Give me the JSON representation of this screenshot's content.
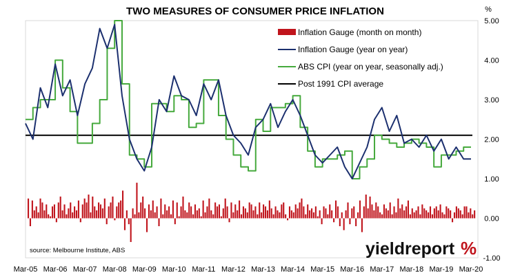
{
  "chart_data": {
    "type": "line",
    "title": "TWO MEASURES OF CONSUMER PRICE INFLATION",
    "y_unit": "%",
    "xlabel": "",
    "ylabel": "",
    "ylim": [
      -1.0,
      5.0
    ],
    "y_ticks": [
      "5.00",
      "4.00",
      "3.00",
      "2.00",
      "1.00",
      "0.00",
      "-1.00"
    ],
    "x_ticks": [
      "Mar-05",
      "Mar-06",
      "Mar-07",
      "Mar-08",
      "Mar-09",
      "Mar-10",
      "Mar-11",
      "Mar-12",
      "Mar-13",
      "Mar-14",
      "Mar-15",
      "Mar-16",
      "Mar-17",
      "Mar-18",
      "Mar-19",
      "Mar-20"
    ],
    "grid": false,
    "legend_position": "top-right",
    "source": "source: Melbourne Institute, ABS",
    "brand": "yieldreport",
    "brand_symbol": "%",
    "series": [
      {
        "name": "Inflation Gauge (month on month)",
        "type": "bar",
        "color": "#c0141c",
        "values": [
          0.5,
          -0.2,
          0.45,
          0.2,
          0.3,
          0.15,
          0.5,
          0.4,
          0.2,
          0.35,
          0.1,
          0.05,
          0.3,
          0.35,
          -0.1,
          0.4,
          0.55,
          0.2,
          0.35,
          0.1,
          0.25,
          0.4,
          0.15,
          0.3,
          0.2,
          0.45,
          -0.1,
          0.35,
          0.5,
          0.4,
          0.6,
          0.15,
          0.55,
          0.3,
          0.2,
          0.4,
          0.35,
          0.25,
          0.5,
          -0.15,
          0.3,
          0.4,
          0.55,
          -0.05,
          0.3,
          0.4,
          0.45,
          0.7,
          -0.3,
          0.2,
          -0.15,
          -0.6,
          0.25,
          0.1,
          0.9,
          0.15,
          0.4,
          0.55,
          0.25,
          -0.35,
          0.35,
          0.2,
          0.45,
          0.15,
          0.3,
          -0.2,
          0.5,
          0.1,
          0.35,
          0.2,
          0.3,
          0.1,
          0.45,
          -0.15,
          0.4,
          0.05,
          0.3,
          0.55,
          0.2,
          0.15,
          0.4,
          0.3,
          0.1,
          0.35,
          0.2,
          0.25,
          0.05,
          0.45,
          0.15,
          0.3,
          0.5,
          0.2,
          0.1,
          0.4,
          0.3,
          0.35,
          0.05,
          0.25,
          0.5,
          0.3,
          -0.1,
          0.4,
          0.15,
          0.35,
          0.2,
          0.45,
          0.1,
          0.3,
          0.25,
          0.15,
          0.4,
          0.35,
          0.2,
          0.3,
          0.1,
          0.4,
          0.15,
          0.35,
          0.3,
          0.2,
          0.45,
          0.25,
          0.1,
          0.3,
          0.2,
          0.15,
          0.35,
          0.4,
          0.1,
          -0.05,
          0.3,
          0.2,
          0.15,
          0.35,
          0.25,
          0.4,
          0.5,
          0.3,
          0.1,
          0.35,
          0.2,
          0.25,
          0.15,
          0.3,
          0.05,
          0.2,
          -0.15,
          0.3,
          0.25,
          0.1,
          0.35,
          0.2,
          -0.1,
          0.45,
          0.3,
          -0.2,
          0.15,
          -0.3,
          0.2,
          0.4,
          -0.15,
          0.25,
          0.3,
          -0.2,
          0.15,
          0.45,
          -0.35,
          0.3,
          0.6,
          0.25,
          0.55,
          0.35,
          0.2,
          0.4,
          0.3,
          0.15,
          0.1,
          0.35,
          0.25,
          0.2,
          0.4,
          0.1,
          0.3,
          0.15,
          0.5,
          0.25,
          0.35,
          0.2,
          0.3,
          0.45,
          0.1,
          0.25,
          0.15,
          0.2,
          0.3,
          0.1,
          0.35,
          0.25,
          0.2,
          0.15,
          0.3,
          0.1,
          0.25,
          0.3,
          0.2,
          0.35,
          0.15,
          0.1,
          0.3,
          0.25,
          0.2,
          -0.1,
          0.15,
          0.3,
          0.25,
          0.2,
          0.1,
          0.3,
          0.3,
          0.15,
          0.25,
          0.1,
          0.2
        ]
      },
      {
        "name": "Inflation Gauge (year on year)",
        "type": "line",
        "color": "#1b2f6e",
        "x": [
          2005.0,
          2005.25,
          2005.5,
          2005.75,
          2006.0,
          2006.25,
          2006.5,
          2006.75,
          2007.0,
          2007.25,
          2007.5,
          2007.75,
          2008.0,
          2008.25,
          2008.5,
          2008.75,
          2009.0,
          2009.25,
          2009.5,
          2009.75,
          2010.0,
          2010.25,
          2010.5,
          2010.75,
          2011.0,
          2011.25,
          2011.5,
          2011.75,
          2012.0,
          2012.25,
          2012.5,
          2012.75,
          2013.0,
          2013.25,
          2013.5,
          2013.75,
          2014.0,
          2014.25,
          2014.5,
          2014.75,
          2015.0,
          2015.25,
          2015.5,
          2015.75,
          2016.0,
          2016.25,
          2016.5,
          2016.75,
          2017.0,
          2017.25,
          2017.5,
          2017.75,
          2018.0,
          2018.25,
          2018.5,
          2018.75,
          2019.0,
          2019.25,
          2019.5,
          2019.75,
          2020.0
        ],
        "y": [
          2.4,
          2.0,
          3.3,
          2.8,
          3.9,
          3.1,
          3.5,
          2.6,
          3.4,
          3.8,
          4.8,
          4.3,
          4.9,
          3.1,
          2.0,
          1.5,
          1.2,
          1.8,
          3.0,
          2.7,
          3.6,
          3.1,
          3.0,
          2.6,
          3.4,
          3.0,
          3.5,
          2.6,
          2.1,
          1.9,
          1.6,
          2.3,
          2.5,
          2.9,
          2.3,
          2.7,
          3.0,
          2.6,
          2.1,
          1.6,
          1.4,
          1.6,
          1.8,
          1.3,
          1.0,
          1.4,
          1.8,
          2.5,
          2.8,
          2.2,
          2.6,
          1.9,
          2.0,
          1.8,
          2.1,
          1.7,
          2.0,
          1.5,
          1.8,
          1.5,
          1.5
        ]
      },
      {
        "name": "ABS CPI (year on year, seasonally adj.)",
        "type": "line",
        "color": "#45a93c",
        "x": [
          2005.0,
          2005.25,
          2005.5,
          2005.75,
          2006.0,
          2006.25,
          2006.5,
          2006.75,
          2007.0,
          2007.25,
          2007.5,
          2007.75,
          2008.0,
          2008.25,
          2008.5,
          2008.75,
          2009.0,
          2009.25,
          2009.5,
          2009.75,
          2010.0,
          2010.25,
          2010.5,
          2010.75,
          2011.0,
          2011.25,
          2011.5,
          2011.75,
          2012.0,
          2012.25,
          2012.5,
          2012.75,
          2013.0,
          2013.25,
          2013.5,
          2013.75,
          2014.0,
          2014.25,
          2014.5,
          2014.75,
          2015.0,
          2015.25,
          2015.5,
          2015.75,
          2016.0,
          2016.25,
          2016.5,
          2016.75,
          2017.0,
          2017.25,
          2017.5,
          2017.75,
          2018.0,
          2018.25,
          2018.5,
          2018.75,
          2019.0,
          2019.25,
          2019.5,
          2019.75,
          2020.0
        ],
        "y": [
          2.5,
          2.8,
          3.0,
          3.0,
          4.0,
          3.3,
          2.7,
          1.9,
          1.9,
          2.4,
          3.0,
          4.3,
          5.0,
          3.4,
          1.6,
          1.5,
          1.3,
          2.9,
          2.9,
          2.7,
          3.1,
          3.0,
          2.3,
          2.4,
          3.5,
          3.5,
          2.6,
          2.0,
          1.6,
          1.3,
          1.2,
          2.5,
          2.2,
          2.8,
          2.8,
          2.9,
          3.1,
          2.3,
          1.7,
          1.3,
          1.5,
          1.5,
          1.6,
          1.7,
          1.0,
          1.3,
          1.5,
          2.1,
          2.0,
          1.9,
          1.8,
          1.9,
          2.0,
          1.9,
          1.8,
          1.3,
          1.6,
          1.6,
          1.7,
          1.8,
          1.8
        ]
      },
      {
        "name": "Post 1991 CPI average",
        "type": "hline",
        "color": "#000000",
        "value": 2.1
      }
    ]
  }
}
